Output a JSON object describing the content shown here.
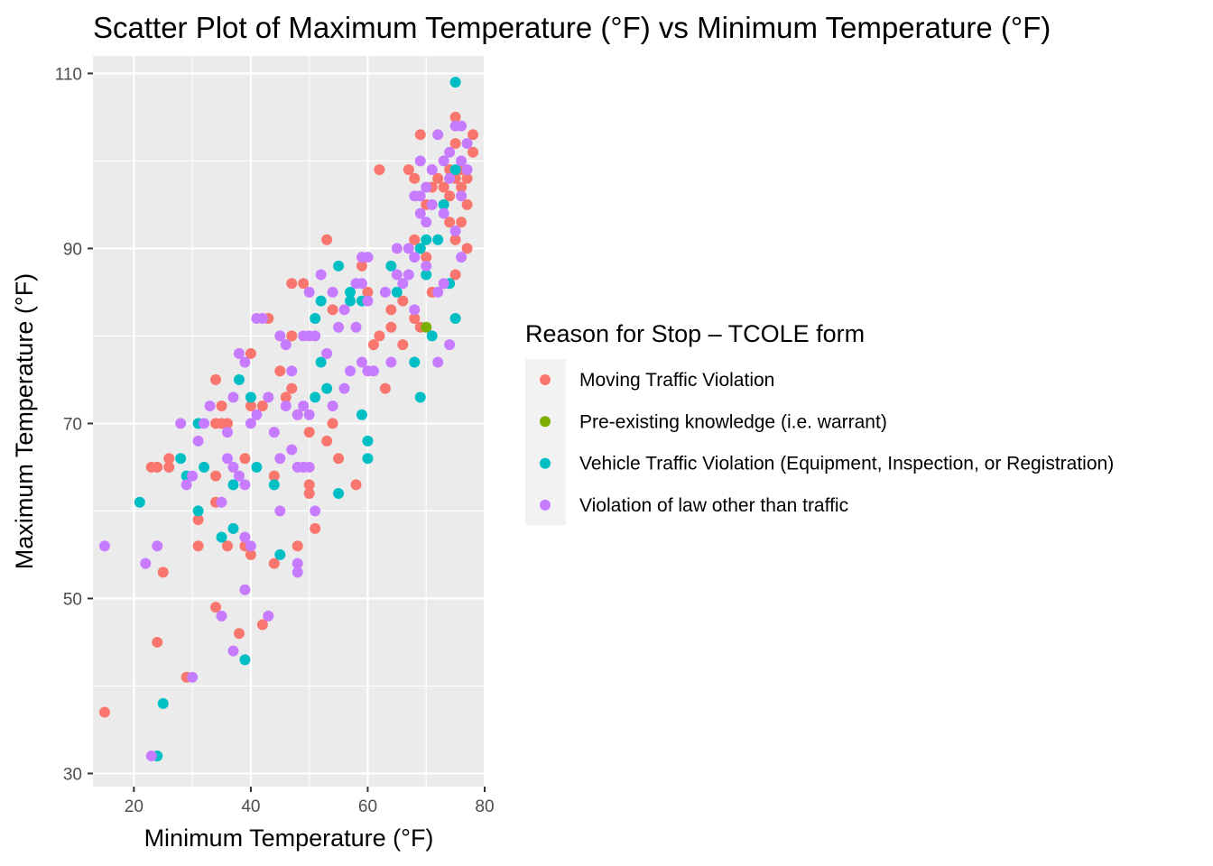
{
  "chart_data": {
    "type": "scatter",
    "title": "Scatter Plot of Maximum Temperature (°F) vs Minimum Temperature (°F)",
    "xlabel": "Minimum Temperature (°F)",
    "ylabel": "Maximum Temperature (°F)",
    "xlim": [
      13,
      80
    ],
    "ylim": [
      28.5,
      112
    ],
    "x_ticks": [
      20,
      40,
      60,
      80
    ],
    "y_ticks": [
      30,
      50,
      70,
      90,
      110
    ],
    "grid": true,
    "legend": {
      "title": "Reason for Stop – TCOLE form",
      "position": "right"
    },
    "series": [
      {
        "name": "Moving Traffic Violation",
        "color": "#F8766D",
        "points": [
          [
            15,
            37
          ],
          [
            23,
            65
          ],
          [
            24,
            65
          ],
          [
            24,
            45
          ],
          [
            25,
            53
          ],
          [
            26,
            66
          ],
          [
            26,
            65
          ],
          [
            29,
            41
          ],
          [
            31,
            59
          ],
          [
            31,
            56
          ],
          [
            34,
            75
          ],
          [
            34,
            70
          ],
          [
            34,
            64
          ],
          [
            34,
            61
          ],
          [
            34,
            49
          ],
          [
            35,
            72
          ],
          [
            35,
            70
          ],
          [
            36,
            70
          ],
          [
            36,
            56
          ],
          [
            38,
            46
          ],
          [
            39,
            66
          ],
          [
            39,
            56
          ],
          [
            40,
            78
          ],
          [
            40,
            72
          ],
          [
            40,
            55
          ],
          [
            42,
            47
          ],
          [
            43,
            82
          ],
          [
            42,
            72
          ],
          [
            44,
            64
          ],
          [
            44,
            54
          ],
          [
            45,
            76
          ],
          [
            46,
            73
          ],
          [
            47,
            86
          ],
          [
            47,
            80
          ],
          [
            47,
            74
          ],
          [
            48,
            71
          ],
          [
            48,
            56
          ],
          [
            49,
            86
          ],
          [
            50,
            63
          ],
          [
            50,
            62
          ],
          [
            50,
            69
          ],
          [
            51,
            58
          ],
          [
            53,
            91
          ],
          [
            53,
            68
          ],
          [
            54,
            83
          ],
          [
            54,
            70
          ],
          [
            55,
            66
          ],
          [
            58,
            63
          ],
          [
            59,
            88
          ],
          [
            60,
            85
          ],
          [
            61,
            79
          ],
          [
            62,
            99
          ],
          [
            62,
            80
          ],
          [
            63,
            74
          ],
          [
            64,
            83
          ],
          [
            64,
            81
          ],
          [
            66,
            84
          ],
          [
            66,
            79
          ],
          [
            67,
            99
          ],
          [
            68,
            98
          ],
          [
            68,
            91
          ],
          [
            68,
            82
          ],
          [
            69,
            103
          ],
          [
            69,
            81
          ],
          [
            70,
            89
          ],
          [
            70,
            95
          ],
          [
            71,
            97
          ],
          [
            71,
            85
          ],
          [
            72,
            98
          ],
          [
            73,
            97
          ],
          [
            74,
            99
          ],
          [
            74,
            93
          ],
          [
            74,
            96
          ],
          [
            75,
            105
          ],
          [
            75,
            102
          ],
          [
            75,
            98
          ],
          [
            75,
            91
          ],
          [
            75,
            87
          ],
          [
            76,
            99
          ],
          [
            76,
            97
          ],
          [
            76,
            93
          ],
          [
            77,
            95
          ],
          [
            77,
            90
          ],
          [
            77,
            98
          ],
          [
            78,
            103
          ],
          [
            78,
            101
          ]
        ]
      },
      {
        "name": "Pre-existing knowledge (i.e. warrant)",
        "color": "#7CAE00",
        "points": [
          [
            69,
            90
          ],
          [
            70,
            81
          ]
        ]
      },
      {
        "name": "Vehicle Traffic Violation (Equipment, Inspection, or Registration)",
        "color": "#00BFC4",
        "points": [
          [
            21,
            61
          ],
          [
            24,
            32
          ],
          [
            25,
            38
          ],
          [
            28,
            66
          ],
          [
            29,
            64
          ],
          [
            31,
            70
          ],
          [
            31,
            60
          ],
          [
            32,
            65
          ],
          [
            35,
            57
          ],
          [
            37,
            63
          ],
          [
            37,
            58
          ],
          [
            38,
            75
          ],
          [
            39,
            43
          ],
          [
            40,
            73
          ],
          [
            41,
            65
          ],
          [
            44,
            63
          ],
          [
            45,
            55
          ],
          [
            51,
            82
          ],
          [
            51,
            73
          ],
          [
            52,
            84
          ],
          [
            52,
            77
          ],
          [
            53,
            74
          ],
          [
            55,
            88
          ],
          [
            55,
            62
          ],
          [
            57,
            85
          ],
          [
            57,
            84
          ],
          [
            59,
            84
          ],
          [
            59,
            71
          ],
          [
            60,
            68
          ],
          [
            60,
            66
          ],
          [
            64,
            88
          ],
          [
            65,
            85
          ],
          [
            68,
            77
          ],
          [
            69,
            73
          ],
          [
            69,
            90
          ],
          [
            70,
            91
          ],
          [
            70,
            87
          ],
          [
            71,
            80
          ],
          [
            72,
            91
          ],
          [
            73,
            95
          ],
          [
            74,
            86
          ],
          [
            75,
            82
          ],
          [
            75,
            109
          ],
          [
            75,
            99
          ]
        ]
      },
      {
        "name": "Violation of law other than traffic",
        "color": "#C77CFF",
        "points": [
          [
            15,
            56
          ],
          [
            22,
            54
          ],
          [
            23,
            32
          ],
          [
            24,
            56
          ],
          [
            28,
            70
          ],
          [
            29,
            63
          ],
          [
            30,
            64
          ],
          [
            30,
            41
          ],
          [
            31,
            68
          ],
          [
            32,
            70
          ],
          [
            33,
            72
          ],
          [
            35,
            61
          ],
          [
            35,
            48
          ],
          [
            36,
            69
          ],
          [
            36,
            66
          ],
          [
            37,
            65
          ],
          [
            37,
            73
          ],
          [
            37,
            44
          ],
          [
            38,
            78
          ],
          [
            38,
            64
          ],
          [
            39,
            77
          ],
          [
            39,
            63
          ],
          [
            39,
            57
          ],
          [
            39,
            51
          ],
          [
            40,
            56
          ],
          [
            40,
            70
          ],
          [
            41,
            82
          ],
          [
            42,
            82
          ],
          [
            41,
            71
          ],
          [
            43,
            73
          ],
          [
            43,
            48
          ],
          [
            44,
            69
          ],
          [
            45,
            80
          ],
          [
            45,
            66
          ],
          [
            45,
            60
          ],
          [
            46,
            79
          ],
          [
            46,
            72
          ],
          [
            47,
            76
          ],
          [
            47,
            67
          ],
          [
            48,
            71
          ],
          [
            48,
            65
          ],
          [
            48,
            54
          ],
          [
            48,
            53
          ],
          [
            49,
            80
          ],
          [
            49,
            72
          ],
          [
            49,
            65
          ],
          [
            50,
            85
          ],
          [
            50,
            80
          ],
          [
            50,
            71
          ],
          [
            50,
            65
          ],
          [
            51,
            80
          ],
          [
            51,
            60
          ],
          [
            52,
            87
          ],
          [
            53,
            78
          ],
          [
            54,
            85
          ],
          [
            54,
            72
          ],
          [
            55,
            81
          ],
          [
            56,
            83
          ],
          [
            56,
            74
          ],
          [
            57,
            76
          ],
          [
            58,
            86
          ],
          [
            58,
            81
          ],
          [
            59,
            89
          ],
          [
            59,
            86
          ],
          [
            59,
            77
          ],
          [
            60,
            89
          ],
          [
            60,
            84
          ],
          [
            60,
            76
          ],
          [
            61,
            76
          ],
          [
            63,
            85
          ],
          [
            64,
            77
          ],
          [
            65,
            90
          ],
          [
            65,
            87
          ],
          [
            66,
            86
          ],
          [
            67,
            90
          ],
          [
            67,
            87
          ],
          [
            68,
            96
          ],
          [
            68,
            89
          ],
          [
            68,
            83
          ],
          [
            69,
            94
          ],
          [
            69,
            96
          ],
          [
            69,
            100
          ],
          [
            70,
            97
          ],
          [
            70,
            93
          ],
          [
            70,
            88
          ],
          [
            71,
            99
          ],
          [
            71,
            95
          ],
          [
            72,
            103
          ],
          [
            72,
            85
          ],
          [
            72,
            77
          ],
          [
            73,
            100
          ],
          [
            73,
            94
          ],
          [
            73,
            86
          ],
          [
            74,
            101
          ],
          [
            74,
            98
          ],
          [
            74,
            79
          ],
          [
            75,
            104
          ],
          [
            75,
            92
          ],
          [
            76,
            104
          ],
          [
            76,
            100
          ],
          [
            76,
            96
          ],
          [
            76,
            89
          ],
          [
            77,
            102
          ],
          [
            77,
            99
          ]
        ]
      }
    ]
  }
}
